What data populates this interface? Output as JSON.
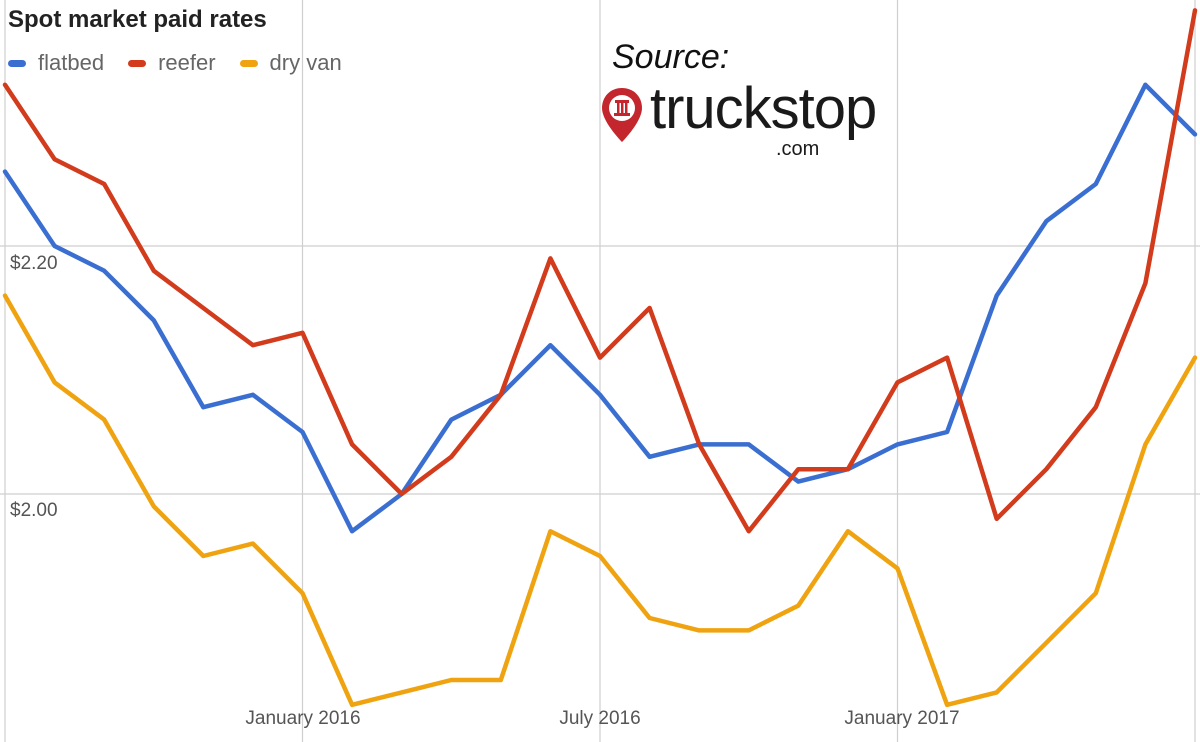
{
  "chart_data": {
    "type": "line",
    "title": "Spot market paid rates",
    "y_tick_labels": [
      "$2.20",
      "$2.00"
    ],
    "y_tick_values": [
      2.2,
      2.0
    ],
    "x_tick_labels": [
      "January 2016",
      "July 2016",
      "January 2017"
    ],
    "x_tick_index": [
      6,
      12,
      18
    ],
    "ylim": [
      1.82,
      2.4
    ],
    "grid": true,
    "legend_position": "top-left",
    "series": [
      {
        "name": "flatbed",
        "color": "#3a6fd1",
        "values": [
          2.26,
          2.2,
          2.18,
          2.14,
          2.07,
          2.08,
          2.05,
          1.97,
          2.0,
          2.06,
          2.08,
          2.12,
          2.08,
          2.03,
          2.04,
          2.04,
          2.01,
          2.02,
          2.04,
          2.05,
          2.16,
          2.22,
          2.25,
          2.33,
          2.29
        ]
      },
      {
        "name": "reefer",
        "color": "#d23b1c",
        "values": [
          2.33,
          2.27,
          2.25,
          2.18,
          2.15,
          2.12,
          2.13,
          2.04,
          2.0,
          2.03,
          2.08,
          2.19,
          2.11,
          2.15,
          2.04,
          1.97,
          2.02,
          2.02,
          2.09,
          2.11,
          1.98,
          2.02,
          2.07,
          2.17,
          2.39
        ]
      },
      {
        "name": "dry van",
        "color": "#f0a310",
        "values": [
          2.16,
          2.09,
          2.06,
          1.99,
          1.95,
          1.96,
          1.92,
          1.83,
          1.84,
          1.85,
          1.85,
          1.97,
          1.95,
          1.9,
          1.89,
          1.89,
          1.91,
          1.97,
          1.94,
          1.83,
          1.84,
          1.88,
          1.92,
          2.04,
          2.11
        ]
      }
    ]
  },
  "source": {
    "label": "Source:",
    "logo_text": "truckstop",
    "logo_suffix": ".com",
    "logo_color": "#c4262e"
  }
}
